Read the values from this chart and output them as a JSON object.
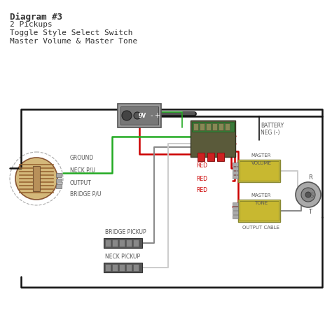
{
  "title_bold": "Diagram #3",
  "title_lines": [
    "2 Pickups",
    "Toggle Style Select Switch",
    "Master Volume & Master Tone"
  ],
  "bg_color": "#ffffff",
  "text_color": "#333333",
  "label_color": "#555555",
  "wire_black": "#111111",
  "wire_red": "#cc0000",
  "wire_green": "#22aa22",
  "wire_white": "#cccccc",
  "wire_gray": "#888888",
  "battery_box_color": "#888888",
  "pickup_fill": "#c8a96e",
  "module_fill": "#d4c84a",
  "module_fill2": "#d4c84a",
  "connector_fill": "#555555",
  "pot_color": "#888888"
}
